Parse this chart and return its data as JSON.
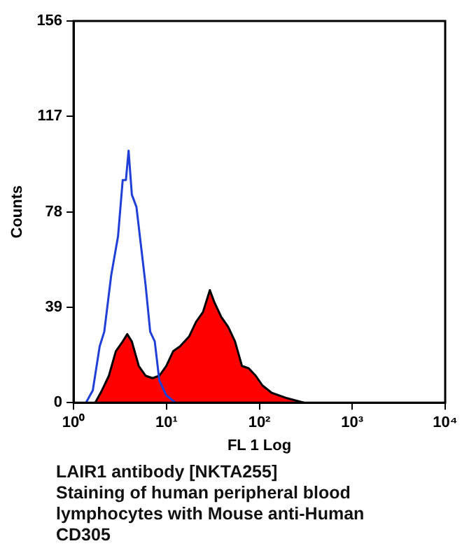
{
  "chart_data": {
    "type": "area",
    "xlabel": "FL 1 Log",
    "ylabel": "Counts",
    "log": "x",
    "xlim": [
      1,
      10000
    ],
    "xticks": [
      {
        "value": 1,
        "label": "10⁰"
      },
      {
        "value": 10,
        "label": "10¹"
      },
      {
        "value": 100,
        "label": "10²"
      },
      {
        "value": 1000,
        "label": "10³"
      },
      {
        "value": 10000,
        "label": "10⁴"
      }
    ],
    "ylim": [
      0,
      156
    ],
    "yticks": [
      0,
      39,
      78,
      117,
      156
    ],
    "grid": false,
    "legend": false,
    "marker": "none",
    "series": [
      {
        "color": "#ff0000",
        "x": [
          1.71,
          2.02,
          2.4,
          2.85,
          3.38,
          3.78,
          4.24,
          5.03,
          5.96,
          7.07,
          8.38,
          9.95,
          11.8,
          14.0,
          17.5,
          20.8,
          24.7,
          29.3,
          32.8,
          38.9,
          46.1,
          54.7,
          64.9,
          76.9,
          91.3,
          108,
          136,
          191,
          301
        ],
        "values": [
          0,
          5,
          11,
          21,
          25,
          28,
          25,
          15,
          11,
          10,
          11,
          15,
          21,
          23,
          27,
          33,
          37,
          46,
          41,
          35,
          31,
          25,
          15,
          14,
          11,
          7,
          4,
          2,
          0
        ]
      },
      {
        "type": "line",
        "color": "#1f3fd6",
        "x": [
          1.36,
          1.61,
          1.91,
          2.14,
          2.54,
          3.01,
          3.38,
          3.66,
          3.91,
          4.24,
          4.75,
          5.32,
          5.96,
          6.68,
          7.48,
          8.38,
          9.95,
          12.5
        ],
        "values": [
          0,
          5,
          23,
          29,
          52,
          68,
          91,
          91,
          103,
          85,
          80,
          64,
          48,
          29,
          25,
          9,
          3,
          0
        ]
      }
    ],
    "annotations": [
      "LAIR1 antibody [NKTA255]\nStaining of human peripheral blood lymphocytes with Mouse anti-Human CD305"
    ]
  }
}
